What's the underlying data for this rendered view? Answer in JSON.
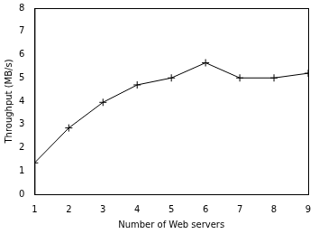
{
  "chart_data": {
    "type": "line",
    "x_label": "Number of Web servers",
    "y_label": "Throughput (MB/s)",
    "x": [
      1,
      2,
      3,
      4,
      5,
      6,
      7,
      8,
      9
    ],
    "values": [
      1.35,
      2.85,
      3.95,
      4.7,
      5.0,
      5.65,
      5.0,
      5.0,
      5.2
    ],
    "color": "#000000",
    "marker": "plus",
    "xlim": [
      1,
      9
    ],
    "xticks": [
      1,
      2,
      3,
      4,
      5,
      6,
      7,
      8,
      9
    ],
    "ylim": [
      0,
      8
    ],
    "yticks": [
      0,
      1,
      2,
      3,
      4,
      5,
      6,
      7,
      8
    ],
    "grid": false
  }
}
